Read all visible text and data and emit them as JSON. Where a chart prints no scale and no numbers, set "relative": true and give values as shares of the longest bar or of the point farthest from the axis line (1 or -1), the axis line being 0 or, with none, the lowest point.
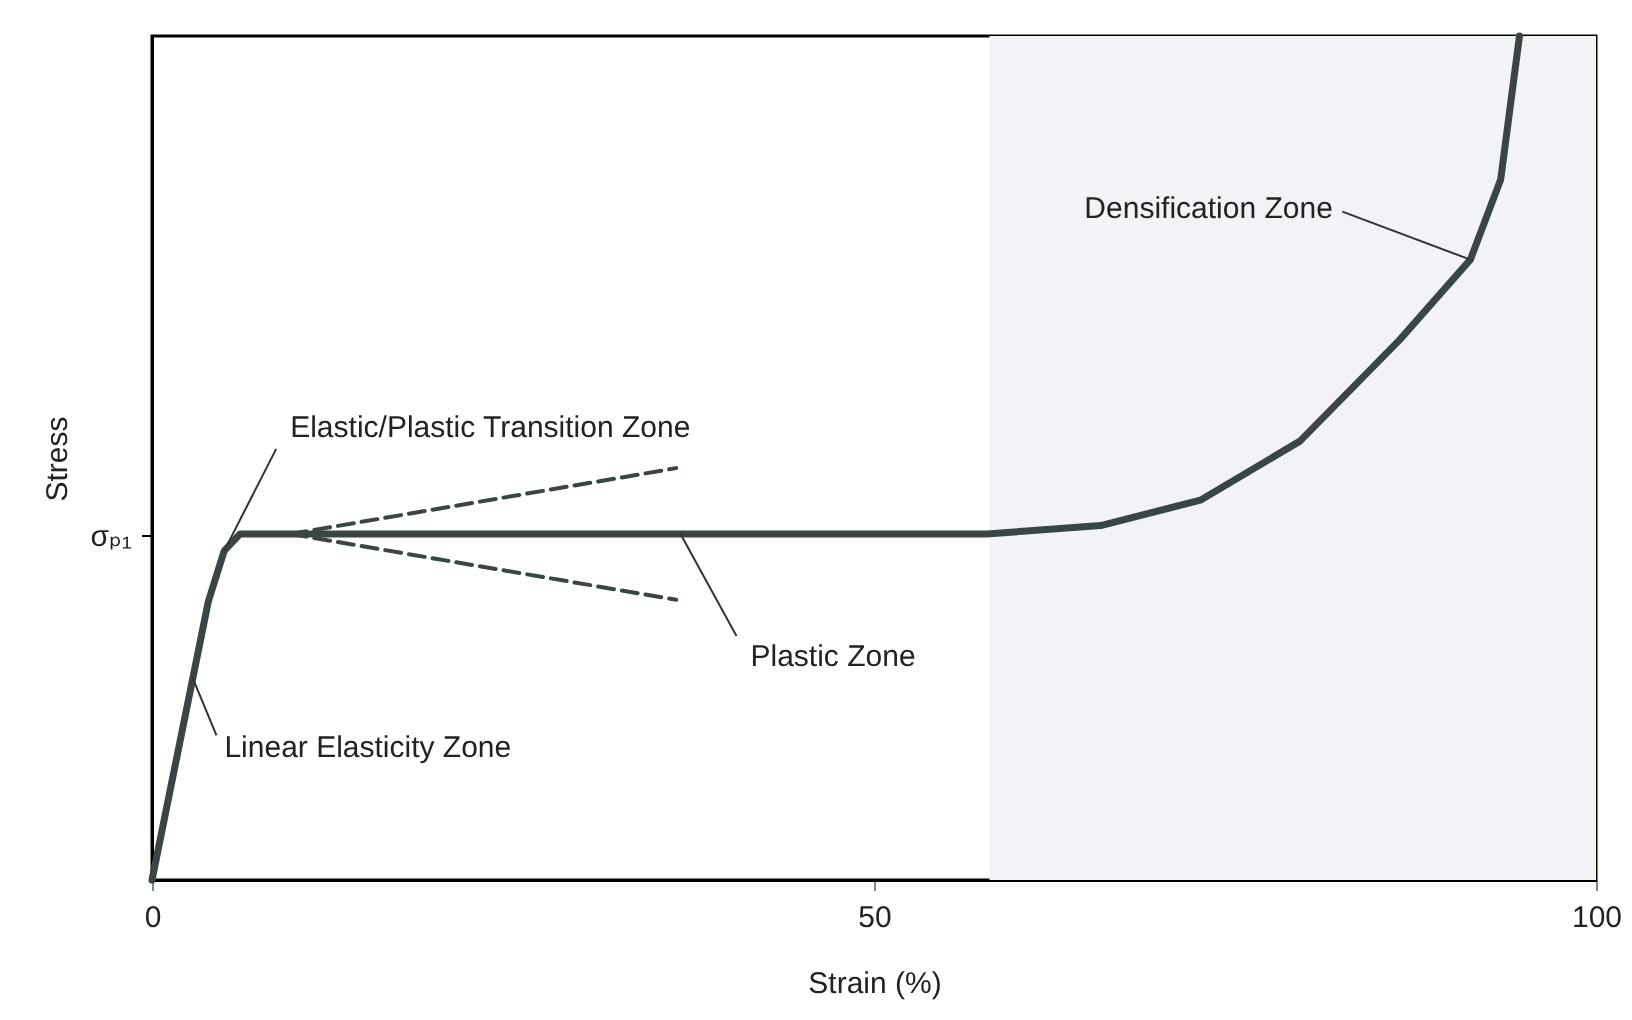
{
  "chart_data": {
    "type": "line",
    "relative": true,
    "xlabel": "Strain (%)",
    "ylabel": "Stress",
    "xlim": [
      0,
      100
    ],
    "xticks": [
      0,
      50,
      100
    ],
    "grid": false,
    "series": [
      {
        "color": "#3a4646",
        "values": [
          0,
          0.33,
          0.39,
          0.41,
          0.41,
          0.42,
          0.45,
          0.52,
          0.64,
          0.735,
          0.83,
          1.0
        ],
        "x": [
          0,
          3.9,
          5,
          6.1,
          57.8,
          65.7,
          72.6,
          79.5,
          86.4,
          91.3,
          93.4,
          94.7
        ]
      },
      {
        "type": "line",
        "color": "#3a4646",
        "line_style": "dashed",
        "x": [
          9.6,
          36.3
        ],
        "values": [
          0.41,
          0.488
        ]
      },
      {
        "type": "line",
        "color": "#3a4646",
        "line_style": "dashed",
        "x": [
          9.6,
          36.3
        ],
        "values": [
          0.41,
          0.332
        ]
      }
    ],
    "bands": [
      {
        "axis": "x",
        "from": 58,
        "to": 100,
        "color": "#f1f3f6"
      }
    ],
    "annotations": [
      "σₚ₁",
      {
        "text": "Elastic/Plastic Transition Zone",
        "x": 5,
        "y": 0.39
      },
      {
        "text": "Linear Elasticity Zone",
        "x": 2.8,
        "y": 0.24
      },
      {
        "text": "Plastic Zone",
        "x": 36.6,
        "y": 0.41
      },
      {
        "text": "Densification Zone",
        "x": 91.3,
        "y": 0.735
      }
    ]
  }
}
